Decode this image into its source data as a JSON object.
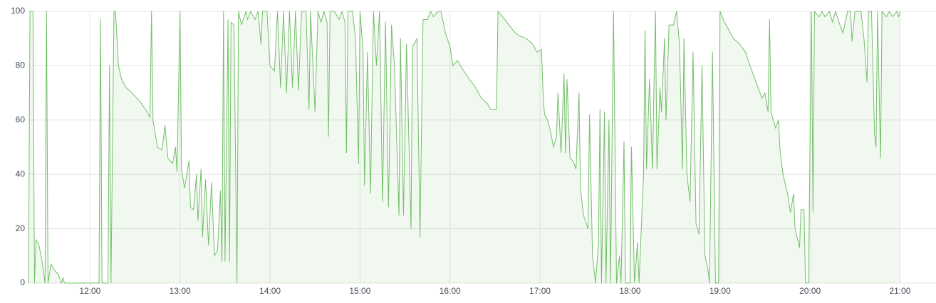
{
  "chart_data": {
    "type": "area",
    "color": "#73bf69",
    "grid": true,
    "xlim": [
      "11:19",
      "21:24"
    ],
    "xticks": [
      "12:00",
      "13:00",
      "14:00",
      "15:00",
      "16:00",
      "17:00",
      "18:00",
      "19:00",
      "20:00",
      "21:00"
    ],
    "ylim": [
      0,
      100
    ],
    "yticks": [
      0,
      20,
      40,
      60,
      80,
      100
    ],
    "x": [
      "11:19",
      "11:20",
      "11:22",
      "11:23",
      "11:24",
      "11:26",
      "11:28",
      "11:30",
      "11:31",
      "11:32",
      "11:34",
      "11:36",
      "11:39",
      "11:41",
      "11:42",
      "11:43",
      "12:06",
      "12:07",
      "12:08",
      "12:12",
      "12:13",
      "12:14",
      "12:16",
      "12:17",
      "12:19",
      "12:21",
      "12:24",
      "12:28",
      "12:33",
      "12:37",
      "12:40",
      "12:41",
      "12:42",
      "12:45",
      "12:48",
      "12:50",
      "12:52",
      "12:55",
      "12:57",
      "12:58",
      "13:00",
      "13:01",
      "13:03",
      "13:06",
      "13:07",
      "13:09",
      "13:11",
      "13:12",
      "13:14",
      "13:15",
      "13:17",
      "13:19",
      "13:21",
      "13:23",
      "13:25",
      "13:27",
      "13:28",
      "13:29",
      "13:30",
      "13:32",
      "13:33",
      "13:34",
      "13:36",
      "13:38",
      "13:39",
      "13:41",
      "13:44",
      "13:45",
      "13:47",
      "13:50",
      "13:52",
      "13:54",
      "13:55",
      "13:58",
      "14:00",
      "14:03",
      "14:05",
      "14:07",
      "14:09",
      "14:11",
      "14:13",
      "14:15",
      "14:17",
      "14:19",
      "14:21",
      "14:24",
      "14:26",
      "14:27",
      "14:30",
      "14:32",
      "14:34",
      "14:36",
      "14:38",
      "14:39",
      "14:40",
      "14:43",
      "14:46",
      "14:48",
      "14:50",
      "14:51",
      "14:52",
      "14:55",
      "14:57",
      "14:59",
      "15:00",
      "15:02",
      "15:03",
      "15:05",
      "15:07",
      "15:09",
      "15:11",
      "15:13",
      "15:15",
      "15:17",
      "15:19",
      "15:21",
      "15:23",
      "15:26",
      "15:27",
      "15:29",
      "15:31",
      "15:34",
      "15:35",
      "15:38",
      "15:40",
      "15:42",
      "15:45",
      "15:47",
      "15:49",
      "15:52",
      "15:54",
      "15:57",
      "16:00",
      "16:02",
      "16:05",
      "16:08",
      "16:13",
      "16:17",
      "16:21",
      "16:25",
      "16:27",
      "16:31",
      "16:32",
      "16:35",
      "16:38",
      "16:42",
      "16:46",
      "16:51",
      "16:55",
      "16:58",
      "17:01",
      "17:02",
      "17:03",
      "17:05",
      "17:07",
      "17:09",
      "17:11",
      "17:12",
      "17:14",
      "17:16",
      "17:17",
      "17:18",
      "17:20",
      "17:22",
      "17:24",
      "17:26",
      "17:27",
      "17:29",
      "17:32",
      "17:33",
      "17:35",
      "17:37",
      "17:39",
      "17:40",
      "17:41",
      "17:43",
      "17:44",
      "17:46",
      "17:47",
      "17:49",
      "17:51",
      "17:53",
      "17:54",
      "17:56",
      "17:57",
      "18:00",
      "18:01",
      "18:03",
      "18:05",
      "18:06",
      "18:09",
      "18:10",
      "18:11",
      "18:13",
      "18:15",
      "18:16",
      "18:17",
      "18:18",
      "18:20",
      "18:21",
      "18:23",
      "18:24",
      "18:26",
      "18:29",
      "18:31",
      "18:33",
      "18:35",
      "18:36",
      "18:38",
      "18:40",
      "18:42",
      "18:44",
      "18:46",
      "18:48",
      "18:50",
      "18:52",
      "18:53",
      "18:55",
      "18:57",
      "18:59",
      "19:00",
      "19:03",
      "19:05",
      "19:09",
      "19:13",
      "19:17",
      "19:20",
      "19:24",
      "19:28",
      "19:30",
      "19:32",
      "19:33",
      "19:34",
      "19:37",
      "19:39",
      "19:40",
      "19:42",
      "19:45",
      "19:47",
      "19:49",
      "19:50",
      "19:53",
      "19:54",
      "19:56",
      "19:57",
      "19:59",
      "20:01",
      "20:02",
      "20:03",
      "20:06",
      "20:08",
      "20:10",
      "20:13",
      "20:15",
      "20:17",
      "20:20",
      "20:22",
      "20:25",
      "20:27",
      "20:28",
      "20:30",
      "20:34",
      "20:36",
      "20:38",
      "20:39",
      "20:41",
      "20:43",
      "20:44",
      "20:45",
      "20:47",
      "20:48",
      "20:51",
      "20:53",
      "20:55",
      "20:58",
      "20:59",
      "21:00"
    ],
    "values": [
      0,
      100,
      100,
      0,
      16,
      14,
      8,
      0,
      100,
      0,
      7,
      5,
      3,
      0,
      2,
      0,
      0,
      97,
      0,
      0,
      80,
      0,
      100,
      100,
      80,
      75,
      72,
      70,
      67,
      64,
      61,
      100,
      60,
      50,
      49,
      58,
      46,
      44,
      50,
      41,
      100,
      42,
      35,
      45,
      28,
      27,
      40,
      23,
      42,
      17,
      38,
      14,
      37,
      10,
      12,
      34,
      8,
      100,
      8,
      97,
      8,
      96,
      95,
      0,
      100,
      95,
      100,
      97,
      100,
      97,
      100,
      88,
      100,
      100,
      80,
      78,
      100,
      72,
      100,
      70,
      100,
      72,
      100,
      71,
      100,
      100,
      64,
      100,
      63,
      100,
      96,
      100,
      96,
      54,
      100,
      100,
      97,
      100,
      96,
      48,
      100,
      100,
      90,
      44,
      100,
      86,
      36,
      85,
      33,
      100,
      80,
      100,
      30,
      96,
      28,
      95,
      80,
      25,
      90,
      25,
      88,
      20,
      87,
      90,
      17,
      97,
      97,
      100,
      98,
      100,
      100,
      92,
      87,
      80,
      82,
      79,
      75,
      72,
      68,
      66,
      64,
      64,
      100,
      98,
      96,
      93,
      91,
      90,
      88,
      85,
      86,
      70,
      62,
      60,
      56,
      50,
      54,
      70,
      48,
      77,
      48,
      75,
      46,
      45,
      42,
      70,
      35,
      25,
      20,
      62,
      10,
      0,
      15,
      64,
      0,
      63,
      0,
      60,
      0,
      100,
      0,
      10,
      0,
      52,
      0,
      0,
      50,
      0,
      15,
      0,
      40,
      93,
      42,
      75,
      42,
      73,
      100,
      42,
      72,
      63,
      90,
      60,
      95,
      95,
      100,
      88,
      42,
      90,
      40,
      30,
      85,
      22,
      18,
      80,
      10,
      5,
      0,
      85,
      0,
      0,
      100,
      96,
      94,
      90,
      88,
      85,
      80,
      74,
      68,
      70,
      63,
      97,
      63,
      57,
      60,
      49,
      40,
      33,
      26,
      33,
      20,
      13,
      27,
      27,
      0,
      0,
      100,
      26,
      100,
      98,
      100,
      98,
      100,
      96,
      100,
      95,
      92,
      100,
      100,
      89,
      100,
      100,
      90,
      74,
      100,
      100,
      55,
      50,
      100,
      46,
      100,
      98,
      100,
      98,
      100,
      98,
      100
    ]
  }
}
